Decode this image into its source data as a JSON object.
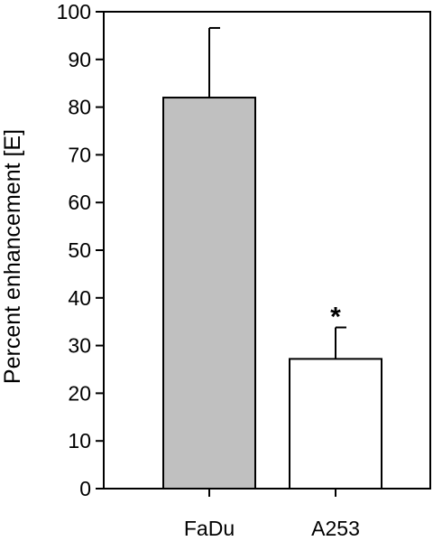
{
  "chart_data": {
    "type": "bar",
    "categories": [
      "FaDu",
      "A253"
    ],
    "values": [
      82,
      27.2
    ],
    "errors": [
      14.6,
      6.6
    ],
    "bar_colors": [
      "#c0c0c0",
      "#ffffff"
    ],
    "annotations": [
      {
        "category": "A253",
        "text": "*"
      }
    ],
    "title": "",
    "xlabel": "",
    "ylabel": "Percent enhancement [E]",
    "ylim": [
      0,
      100
    ],
    "yticks": [
      0,
      10,
      20,
      30,
      40,
      50,
      60,
      70,
      80,
      90,
      100
    ],
    "grid": false,
    "legend": "none"
  }
}
